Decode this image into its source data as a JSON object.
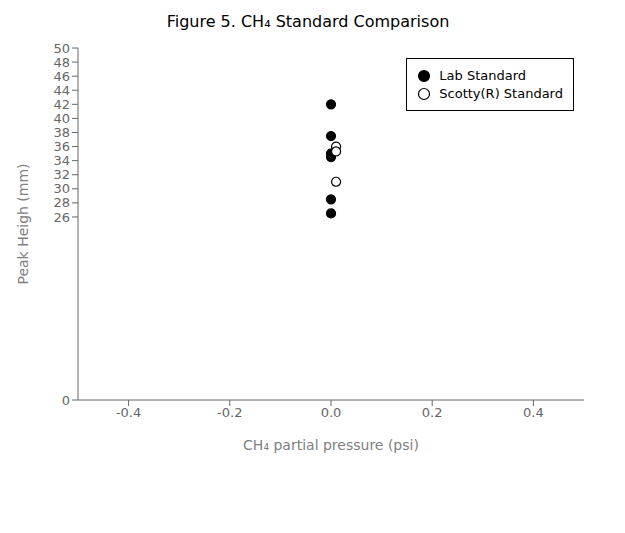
{
  "chart_data": {
    "type": "scatter",
    "title": "Figure 5.  CH₄ Standard Comparison",
    "xlabel": "CH₄ partial pressure (psi)",
    "ylabel": "Peak Heigh (mm)",
    "xlim": [
      -0.5,
      0.5
    ],
    "ylim": [
      0,
      50
    ],
    "xticks": [
      -0.4,
      -0.2,
      {
        "value": 0.0,
        "label": "0.0"
      },
      0.2,
      0.4
    ],
    "yticks": [
      0,
      26,
      28,
      30,
      32,
      34,
      36,
      38,
      40,
      42,
      44,
      46,
      48,
      50
    ],
    "legend": "upper right",
    "series": [
      {
        "name": "Lab Standard",
        "color": "#000000",
        "marker": "circle",
        "x": [
          0.0,
          0.0,
          0.0,
          0.0,
          0.0,
          0.0
        ],
        "values": [
          42.0,
          37.5,
          35.0,
          34.5,
          28.5,
          26.5
        ]
      },
      {
        "name": "Scotty(R) Standard",
        "color": "#ffffff",
        "marker": "circle",
        "x": [
          0.01,
          0.01,
          0.01
        ],
        "values": [
          36.0,
          35.3,
          31.0
        ]
      }
    ]
  }
}
